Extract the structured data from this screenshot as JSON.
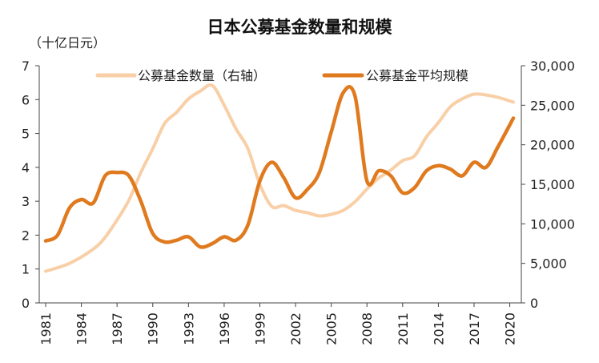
{
  "chart_data": {
    "type": "line",
    "title": "日本公募基金数量和规模",
    "left_axis_unit": "（十亿日元）",
    "ylim_left": [
      0,
      7
    ],
    "ylim_right": [
      0,
      30000
    ],
    "left_ticks": [
      "0",
      "1",
      "2",
      "3",
      "4",
      "5",
      "6",
      "7"
    ],
    "right_ticks": [
      "0",
      "5,000",
      "10,000",
      "15,000",
      "20,000",
      "25,000",
      "30,000"
    ],
    "x_ticks": [
      "1981",
      "1984",
      "1987",
      "1990",
      "1993",
      "1996",
      "1999",
      "2002",
      "2005",
      "2008",
      "2011",
      "2014",
      "2017",
      "2020"
    ],
    "xlim": [
      1981,
      2020.5
    ],
    "legend_position": "top",
    "series": [
      {
        "name": "公募基金数量（右轴）",
        "axis": "right",
        "color": "#f8cfa6",
        "points": [
          [
            1981,
            4000
          ],
          [
            1983,
            5000
          ],
          [
            1985,
            6800
          ],
          [
            1986,
            8300
          ],
          [
            1987,
            10500
          ],
          [
            1988,
            13000
          ],
          [
            1989,
            16500
          ],
          [
            1990,
            19500
          ],
          [
            1991,
            22700
          ],
          [
            1992,
            24100
          ],
          [
            1993,
            25800
          ],
          [
            1994,
            26800
          ],
          [
            1995,
            27500
          ],
          [
            1996,
            25000
          ],
          [
            1997,
            22000
          ],
          [
            1998,
            19500
          ],
          [
            1999,
            15000
          ],
          [
            2000,
            12200
          ],
          [
            2001,
            12300
          ],
          [
            2002,
            11700
          ],
          [
            2003,
            11400
          ],
          [
            2004,
            11000
          ],
          [
            2005,
            11200
          ],
          [
            2006,
            11700
          ],
          [
            2007,
            12800
          ],
          [
            2008,
            14400
          ],
          [
            2009,
            15800
          ],
          [
            2010,
            16800
          ],
          [
            2011,
            18000
          ],
          [
            2012,
            18600
          ],
          [
            2013,
            21000
          ],
          [
            2014,
            22800
          ],
          [
            2015,
            24800
          ],
          [
            2016,
            25800
          ],
          [
            2017,
            26400
          ],
          [
            2018,
            26300
          ],
          [
            2019,
            26000
          ],
          [
            2020.3,
            25400
          ]
        ]
      },
      {
        "name": "公募基金平均规模",
        "axis": "left",
        "color": "#e07a1f",
        "points": [
          [
            1981,
            1.83
          ],
          [
            1982,
            2.0
          ],
          [
            1983,
            2.8
          ],
          [
            1984,
            3.05
          ],
          [
            1985,
            2.95
          ],
          [
            1986,
            3.75
          ],
          [
            1987,
            3.85
          ],
          [
            1988,
            3.75
          ],
          [
            1989,
            3.0
          ],
          [
            1990,
            2.05
          ],
          [
            1991,
            1.8
          ],
          [
            1992,
            1.85
          ],
          [
            1993,
            1.95
          ],
          [
            1994,
            1.65
          ],
          [
            1995,
            1.75
          ],
          [
            1996,
            1.95
          ],
          [
            1997,
            1.85
          ],
          [
            1998,
            2.3
          ],
          [
            1999,
            3.6
          ],
          [
            2000,
            4.15
          ],
          [
            2001,
            3.7
          ],
          [
            2002,
            3.1
          ],
          [
            2003,
            3.35
          ],
          [
            2004,
            3.85
          ],
          [
            2005,
            5.05
          ],
          [
            2006,
            6.2
          ],
          [
            2007,
            6.1
          ],
          [
            2008,
            3.6
          ],
          [
            2009,
            3.9
          ],
          [
            2010,
            3.75
          ],
          [
            2011,
            3.25
          ],
          [
            2012,
            3.4
          ],
          [
            2013,
            3.9
          ],
          [
            2014,
            4.05
          ],
          [
            2015,
            3.95
          ],
          [
            2016,
            3.75
          ],
          [
            2017,
            4.15
          ],
          [
            2018,
            4.0
          ],
          [
            2019,
            4.6
          ],
          [
            2020.3,
            5.45
          ]
        ]
      }
    ]
  }
}
